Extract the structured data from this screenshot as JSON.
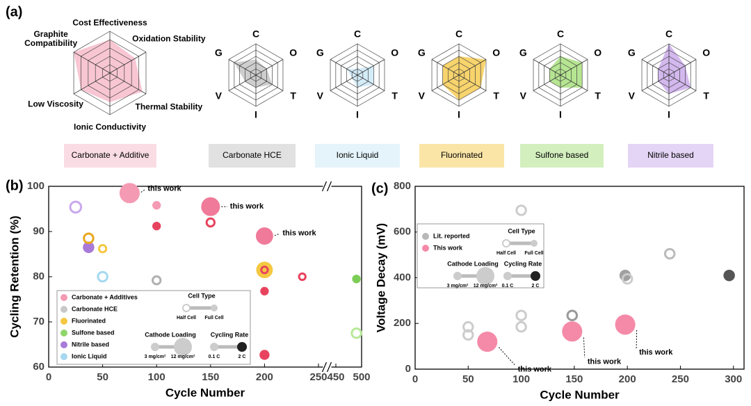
{
  "chart_data": [
    {
      "type": "radar",
      "panel_label": "(a)",
      "axes": [
        "Cost Effectiveness",
        "Oxidation Stability",
        "Thermal Stability",
        "Ionic Conductivity",
        "Low Viscosity",
        "Graphite Compatibility"
      ],
      "rlim": [
        0,
        5
      ],
      "rticks": [
        1,
        2,
        3,
        4,
        5
      ],
      "series": [
        {
          "name": "Carbonate + Additive",
          "color": "#f5b3c4",
          "values": [
            4,
            3.5,
            4.5,
            3.5,
            4,
            5
          ]
        }
      ]
    },
    {
      "type": "radar",
      "axes": [
        "C",
        "O",
        "T",
        "I",
        "V",
        "G"
      ],
      "rlim": [
        0,
        5
      ],
      "rticks": [
        1,
        2,
        3,
        4,
        5
      ],
      "series": [
        {
          "name": "Carbonate HCE",
          "color": "#bdbdbd",
          "values": [
            2.5,
            2,
            3,
            2,
            2,
            4
          ]
        }
      ]
    },
    {
      "type": "radar",
      "axes": [
        "C",
        "O",
        "T",
        "I",
        "V",
        "G"
      ],
      "rlim": [
        0,
        5
      ],
      "rticks": [
        1,
        2,
        3,
        4,
        5
      ],
      "series": [
        {
          "name": "Ionic Liquid",
          "color": "#c5e6f5",
          "values": [
            1,
            3,
            3,
            2,
            1,
            2
          ]
        }
      ]
    },
    {
      "type": "radar",
      "axes": [
        "C",
        "O",
        "T",
        "I",
        "V",
        "G"
      ],
      "rlim": [
        0,
        5
      ],
      "rticks": [
        1,
        2,
        3,
        4,
        5
      ],
      "series": [
        {
          "name": "Fluorinated",
          "color": "#f5c53c",
          "values": [
            3,
            5,
            4,
            4,
            3,
            3
          ]
        }
      ]
    },
    {
      "type": "radar",
      "axes": [
        "C",
        "O",
        "T",
        "I",
        "V",
        "G"
      ],
      "rlim": [
        0,
        5
      ],
      "rticks": [
        1,
        2,
        3,
        4,
        5
      ],
      "series": [
        {
          "name": "Sulfone based",
          "color": "#9ddc6e",
          "values": [
            3,
            4,
            4,
            2,
            2,
            2
          ]
        }
      ]
    },
    {
      "type": "radar",
      "axes": [
        "C",
        "O",
        "T",
        "I",
        "V",
        "G"
      ],
      "rlim": [
        0,
        5
      ],
      "rticks": [
        1,
        2,
        3,
        4,
        5
      ],
      "series": [
        {
          "name": "Nitrile based",
          "color": "#c4a0e8",
          "values": [
            5,
            3,
            4,
            3,
            2,
            2
          ]
        }
      ]
    },
    {
      "type": "bubble",
      "panel_label": "(b)",
      "x_label": "Cycle Number",
      "y_label": "Cycling Retention (%)",
      "xlim": [
        0,
        500
      ],
      "x_break": [
        250,
        450
      ],
      "xticks": [
        0,
        50,
        100,
        150,
        200,
        250,
        450,
        500
      ],
      "ylim": [
        60,
        100
      ],
      "yticks": [
        60,
        70,
        80,
        90,
        100
      ],
      "series": [
        {
          "name": "Carbonate + Additives",
          "color": "#f49ab3",
          "x": [
            75,
            100,
            150,
            200,
            100,
            150,
            200,
            200,
            200,
            235
          ],
          "values": [
            98.5,
            95.8,
            95.5,
            89,
            91.2,
            92,
            81.5,
            76.8,
            62.7,
            80
          ],
          "sizes": [
            11,
            3,
            10,
            9,
            3,
            4,
            3,
            3,
            4,
            3
          ],
          "filled": [
            true,
            true,
            true,
            true,
            true,
            false,
            false,
            true,
            true,
            false
          ],
          "colors": [
            "#f49ab3",
            "#f49ab3",
            "#f07a9a",
            "#f07a9a",
            "#e8435e",
            "#e8435e",
            "#e8435e",
            "#e8435e",
            "#e8435e",
            "#e8435e"
          ]
        },
        {
          "name": "Carbonate HCE",
          "color": "#c8c8c8",
          "x": [
            100
          ],
          "values": [
            79.2
          ],
          "sizes": [
            4
          ],
          "filled": [
            false
          ],
          "colors": [
            "#b0b0b0"
          ]
        },
        {
          "name": "Fluorinated",
          "color": "#f5c842",
          "x": [
            37,
            50,
            200
          ],
          "values": [
            88.5,
            86.2,
            81.5
          ],
          "sizes": [
            5,
            3.5,
            8.5
          ],
          "filled": [
            false,
            false,
            true
          ],
          "colors": [
            "#e8a820",
            "#f5c842",
            "#f5c842"
          ]
        },
        {
          "name": "Sulfone based",
          "color": "#8fd66a",
          "x": [
            490,
            490
          ],
          "values": [
            79.5,
            67.5
          ],
          "sizes": [
            3,
            5
          ],
          "filled": [
            true,
            false
          ],
          "colors": [
            "#7ccd55",
            "#b8e89a"
          ]
        },
        {
          "name": "Nitrile based",
          "color": "#a97ad8",
          "x": [
            37,
            25
          ],
          "values": [
            86.5,
            95.4
          ],
          "sizes": [
            5,
            6
          ],
          "filled": [
            true,
            false
          ],
          "colors": [
            "#a97ad8",
            "#c9a8ec"
          ]
        },
        {
          "name": "Ionic Liquid",
          "color": "#a6d8f0",
          "x": [
            50
          ],
          "values": [
            80
          ],
          "sizes": [
            5
          ],
          "filled": [
            false
          ],
          "colors": [
            "#a6d8f0"
          ]
        }
      ],
      "annotations": [
        "this work",
        "this work",
        "this work"
      ],
      "legend": {
        "cell_type": {
          "title": "Cell Type",
          "labels": [
            "Half Cell",
            "Full Cell"
          ]
        },
        "cathode_loading": {
          "title": "Cathode Loading",
          "labels": [
            "3 mg/cm²",
            "12 mg/cm²"
          ]
        },
        "cycling_rate": {
          "title": "Cycling Rate",
          "labels": [
            "0.1 C",
            "2 C"
          ]
        }
      }
    },
    {
      "type": "bubble",
      "panel_label": "(c)",
      "x_label": "Cycle Number",
      "y_label": "Voltage Decay (mV)",
      "xlim": [
        0,
        310
      ],
      "xticks": [
        0,
        50,
        100,
        150,
        200,
        250,
        300
      ],
      "ylim": [
        0,
        800
      ],
      "yticks": [
        0,
        200,
        400,
        600,
        800
      ],
      "series": [
        {
          "name": "Lit. reported",
          "color": "#b8b8b8",
          "x": [
            50,
            50,
            100,
            100,
            100,
            148,
            198,
            200,
            240,
            296
          ],
          "values": [
            185,
            150,
            695,
            235,
            185,
            235,
            410,
            395,
            505,
            410
          ],
          "sizes": [
            5,
            5,
            5,
            5,
            5,
            5,
            5,
            5,
            5,
            5
          ],
          "filled": [
            false,
            false,
            false,
            false,
            false,
            false,
            true,
            false,
            false,
            true
          ],
          "colors": [
            "#cccccc",
            "#cccccc",
            "#cccccc",
            "#cccccc",
            "#cccccc",
            "#999999",
            "#a0a0a0",
            "#cccccc",
            "#bbbbbb",
            "#555555"
          ]
        },
        {
          "name": "This work",
          "color": "#f48aa8",
          "x": [
            68,
            148,
            198
          ],
          "values": [
            120,
            165,
            195
          ],
          "sizes": [
            11,
            11,
            11
          ],
          "filled": [
            true,
            true,
            true
          ],
          "colors": [
            "#f48aa8",
            "#f48aa8",
            "#f48aa8"
          ]
        }
      ],
      "annotations": [
        "this work",
        "this work",
        "this work"
      ],
      "legend": {
        "cell_type": {
          "title": "Cell Type",
          "labels": [
            "Half Cell",
            "Full Cell"
          ]
        },
        "cathode_loading": {
          "title": "Cathode Loading",
          "labels": [
            "3 mg/cm²",
            "12 mg/cm²"
          ]
        },
        "cycling_rate": {
          "title": "Cycling Rate",
          "labels": [
            "0.1 C",
            "2 C"
          ]
        }
      }
    }
  ]
}
